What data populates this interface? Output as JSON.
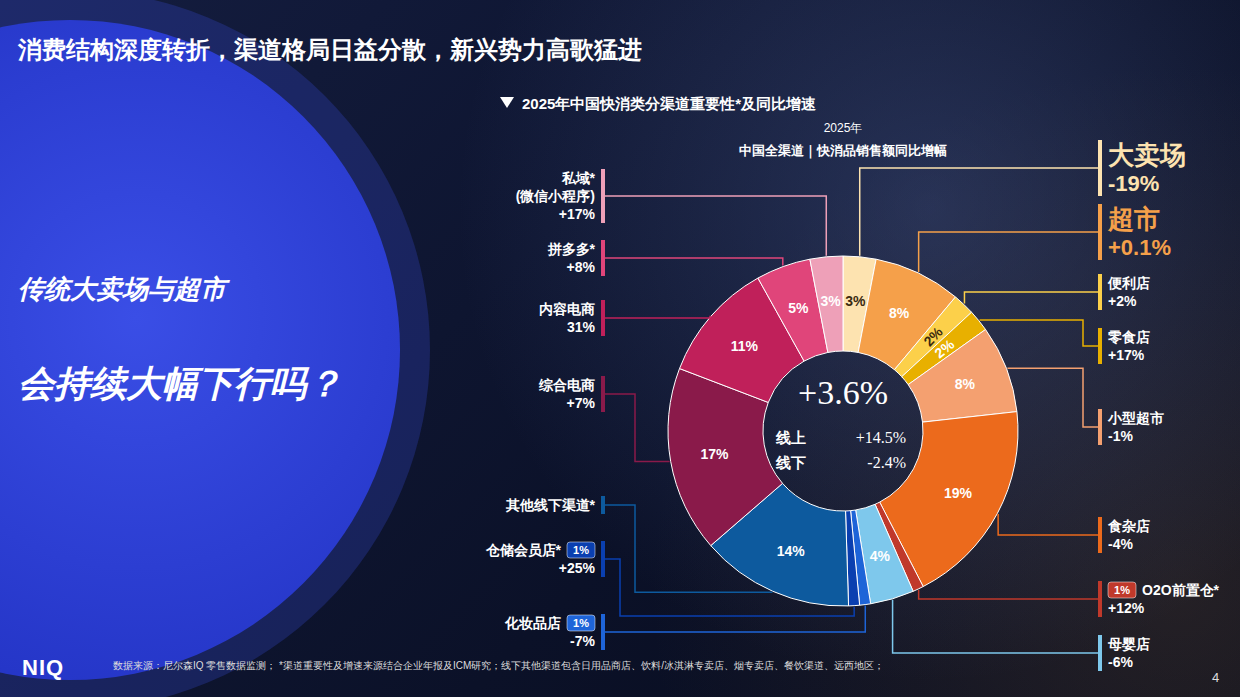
{
  "slide": {
    "title": "消费结构深度转折，渠道格局日益分散，新兴势力高歌猛进",
    "side_question": [
      "传统大卖场与超市",
      "会持续大幅下行吗？"
    ],
    "footer": "数据来源：尼尔森IQ 零售数据监测；  *渠道重要性及增速来源结合企业年报及ICM研究；线下其他渠道包含日用品商店、饮料/冰淇淋专卖店、烟专卖店、餐饮渠道、远西地区；",
    "logo": "NIQ",
    "page": "4"
  },
  "chart_data": {
    "type": "pie",
    "title": "2025年中国快消类分渠道重要性*及同比增速",
    "subtitle": [
      "2025年",
      "中国全渠道｜快消品销售额同比增幅"
    ],
    "center": {
      "value": 3.6,
      "label": "+3.6%",
      "rows": [
        {
          "name": "线上",
          "value": 14.5,
          "label": "+14.5%"
        },
        {
          "name": "线下",
          "value": -2.4,
          "label": "-2.4%"
        }
      ]
    },
    "categories": [
      "大卖场",
      "超市",
      "便利店",
      "零食店",
      "小型超市",
      "食杂店",
      "O2O前置仓*",
      "母婴店",
      "化妆品店",
      "仓储会员店*",
      "其他线下渠道*",
      "综合电商",
      "内容电商",
      "拼多多*",
      "私域*(微信小程序)"
    ],
    "values": [
      3,
      8,
      2,
      2,
      8,
      19,
      1,
      4,
      1,
      1,
      14,
      17,
      11,
      5,
      3
    ],
    "value_labels": [
      "3%",
      "8%",
      "2%",
      "2%",
      "8%",
      "19%",
      "1%",
      "4%",
      "1%",
      "1%",
      "14%",
      "17%",
      "11%",
      "5%",
      "3%"
    ],
    "colors": [
      "#fde3b0",
      "#f5a04a",
      "#fcd04a",
      "#e8b000",
      "#f4a070",
      "#ec6a1c",
      "#c0392b",
      "#7ec8ec",
      "#1e64d8",
      "#0a3fb0",
      "#0d5a9e",
      "#8a1a4a",
      "#c0205a",
      "#e0457a",
      "#eea0b8"
    ],
    "growth": [
      -19,
      0.1,
      2,
      17,
      -1,
      -4,
      12,
      -6,
      -7,
      25,
      null,
      7,
      31,
      8,
      17
    ],
    "growth_labels": [
      "-19%",
      "+0.1%",
      "+2%",
      "+17%",
      "-1%",
      "-4%",
      "+12%",
      "-6%",
      "-7%",
      "+25%",
      null,
      "+7%",
      "31%",
      "+8%",
      "+17%"
    ],
    "data_labels": true
  }
}
